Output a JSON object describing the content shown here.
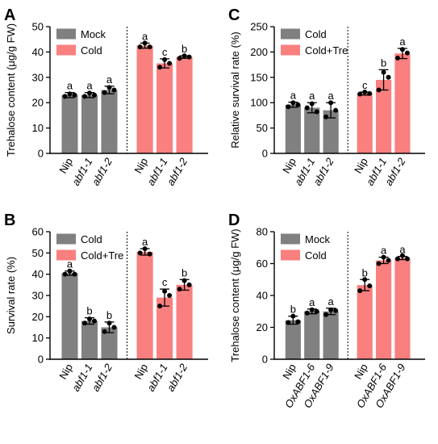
{
  "chart_data": [
    {
      "type": "bar",
      "panel_label": "A",
      "y_label": "Trehalose content (μg/g FW)",
      "categories": [
        "Nip",
        "abf1-1",
        "abf1-2",
        "Nip",
        "abf1-1",
        "abf1-2"
      ],
      "series": [
        {
          "name": "Mock",
          "color": "#808080",
          "values": [
            23,
            23,
            25,
            null,
            null,
            null
          ],
          "errors": [
            1,
            1,
            1.5,
            null,
            null,
            null
          ],
          "points": [
            [
              22.5,
              23.5,
              23
            ],
            [
              22.5,
              23.8,
              23
            ],
            [
              24,
              26,
              25
            ],
            null,
            null,
            null
          ]
        },
        {
          "name": "Cold",
          "color": "#fa7f7f",
          "values": [
            null,
            null,
            null,
            42.5,
            35.5,
            38
          ],
          "errors": [
            null,
            null,
            null,
            1,
            1.8,
            0.5
          ],
          "points": [
            null,
            null,
            null,
            [
              42,
              43.5,
              42
            ],
            [
              34,
              37,
              35.5
            ],
            [
              37.5,
              38.5,
              38
            ]
          ]
        }
      ],
      "letters": [
        "a",
        "a",
        "a",
        "a",
        "c",
        "b"
      ],
      "ylim": [
        0,
        50
      ],
      "yticks": [
        0,
        10,
        20,
        30,
        40,
        50
      ],
      "legend": "upper left"
    },
    {
      "type": "bar",
      "panel_label": "B",
      "y_label": "Survival rate (%)",
      "categories": [
        "Nip",
        "abf1-1",
        "abf1-2",
        "Nip",
        "abf1-1",
        "abf1-2"
      ],
      "series": [
        {
          "name": "Cold",
          "color": "#808080",
          "values": [
            40.5,
            18,
            15,
            null,
            null,
            null
          ],
          "errors": [
            1,
            1.5,
            2.5,
            null,
            null,
            null
          ],
          "points": [
            [
              40,
              41.5,
              40
            ],
            [
              17,
              19,
              18
            ],
            [
              13,
              17,
              15
            ],
            null,
            null,
            null
          ]
        },
        {
          "name": "Cold+Tre",
          "color": "#fa7f7f",
          "values": [
            null,
            null,
            null,
            50.5,
            29,
            35
          ],
          "errors": [
            null,
            null,
            null,
            1.5,
            4,
            2.5
          ],
          "points": [
            null,
            null,
            null,
            [
              50,
              52,
              49.5
            ],
            [
              25,
              32,
              30
            ],
            [
              33,
              37,
              35
            ]
          ]
        }
      ],
      "letters": [
        "a",
        "b",
        "b",
        "a",
        "c",
        "b"
      ],
      "ylim": [
        0,
        60
      ],
      "yticks": [
        0,
        10,
        20,
        30,
        40,
        50,
        60
      ],
      "legend": "upper left"
    },
    {
      "type": "bar",
      "panel_label": "C",
      "y_label": "Relative survival rate (%)",
      "categories": [
        "Nip",
        "abf1-1",
        "abf1-2",
        "Nip",
        "abf1-1",
        "abf1-2"
      ],
      "series": [
        {
          "name": "Cold",
          "color": "#808080",
          "values": [
            96,
            90,
            85,
            null,
            null,
            null
          ],
          "errors": [
            5,
            10,
            15,
            null,
            null,
            null
          ],
          "points": [
            [
              92,
              100,
              96
            ],
            [
              90,
              98,
              82
            ],
            [
              72,
              100,
              85
            ],
            null,
            null,
            null
          ]
        },
        {
          "name": "Cold+Tre",
          "color": "#fa7f7f",
          "values": [
            null,
            null,
            null,
            118,
            145,
            197
          ],
          "errors": [
            null,
            null,
            null,
            3,
            20,
            10
          ],
          "points": [
            null,
            null,
            null,
            [
              117,
              121,
              118
            ],
            [
              125,
              160,
              150
            ],
            [
              188,
              205,
              198
            ]
          ]
        }
      ],
      "letters": [
        "a",
        "a",
        "a",
        "c",
        "b",
        "a"
      ],
      "ylim": [
        0,
        250
      ],
      "yticks": [
        0,
        50,
        100,
        150,
        200,
        250
      ],
      "legend": "upper left"
    },
    {
      "type": "bar",
      "panel_label": "D",
      "y_label": "Trehalose content (μg/g FW)",
      "categories": [
        "Nip",
        "OxABF1-6",
        "OxABF1-9",
        "Nip",
        "OxABF1-6",
        "OxABF1-9"
      ],
      "series": [
        {
          "name": "Mock",
          "color": "#808080",
          "values": [
            24.5,
            30,
            30,
            null,
            null,
            null
          ],
          "errors": [
            2.5,
            1.5,
            2,
            null,
            null,
            null
          ],
          "points": [
            [
              23,
              27,
              23.5
            ],
            [
              29,
              31,
              30
            ],
            [
              28,
              31,
              30.5
            ],
            null,
            null,
            null
          ]
        },
        {
          "name": "Cold",
          "color": "#fa7f7f",
          "values": [
            null,
            null,
            null,
            46.5,
            62,
            63.5
          ],
          "errors": [
            null,
            null,
            null,
            3.5,
            2,
            1
          ],
          "points": [
            null,
            null,
            null,
            [
              43,
              50,
              46
            ],
            [
              60,
              64,
              62
            ],
            [
              63,
              65,
              63
            ]
          ]
        }
      ],
      "letters": [
        "b",
        "a",
        "a",
        "b",
        "a",
        "a"
      ],
      "ylim": [
        0,
        80
      ],
      "yticks": [
        0,
        20,
        40,
        60,
        80
      ],
      "legend": "upper left"
    }
  ]
}
